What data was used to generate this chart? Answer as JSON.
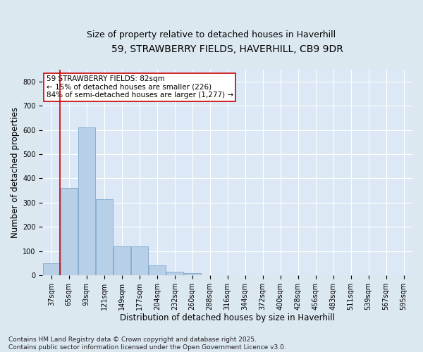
{
  "title_line1": "59, STRAWBERRY FIELDS, HAVERHILL, CB9 9DR",
  "title_line2": "Size of property relative to detached houses in Haverhill",
  "xlabel": "Distribution of detached houses by size in Haverhill",
  "ylabel": "Number of detached properties",
  "categories": [
    "37sqm",
    "65sqm",
    "93sqm",
    "121sqm",
    "149sqm",
    "177sqm",
    "204sqm",
    "232sqm",
    "260sqm",
    "288sqm",
    "316sqm",
    "344sqm",
    "372sqm",
    "400sqm",
    "428sqm",
    "456sqm",
    "483sqm",
    "511sqm",
    "539sqm",
    "567sqm",
    "595sqm"
  ],
  "values": [
    50,
    360,
    610,
    315,
    120,
    120,
    40,
    15,
    10,
    0,
    0,
    0,
    0,
    0,
    0,
    0,
    0,
    0,
    0,
    0,
    0
  ],
  "bar_color": "#b8cfe8",
  "bar_edge_color": "#8aaed0",
  "vline_color": "#cc0000",
  "annotation_text": "59 STRAWBERRY FIELDS: 82sqm\n← 15% of detached houses are smaller (226)\n84% of semi-detached houses are larger (1,277) →",
  "annotation_box_facecolor": "#ffffff",
  "annotation_box_edgecolor": "#cc0000",
  "annotation_fontsize": 7.5,
  "bg_color": "#dce8f0",
  "plot_bg_color": "#dce8f5",
  "grid_color": "#ffffff",
  "footer": "Contains HM Land Registry data © Crown copyright and database right 2025.\nContains public sector information licensed under the Open Government Licence v3.0.",
  "ylim": [
    0,
    850
  ],
  "yticks": [
    0,
    100,
    200,
    300,
    400,
    500,
    600,
    700,
    800
  ],
  "title_fontsize": 10,
  "subtitle_fontsize": 9,
  "xlabel_fontsize": 8.5,
  "ylabel_fontsize": 8.5,
  "tick_fontsize": 7,
  "footer_fontsize": 6.5,
  "vline_x_data": 0.5
}
